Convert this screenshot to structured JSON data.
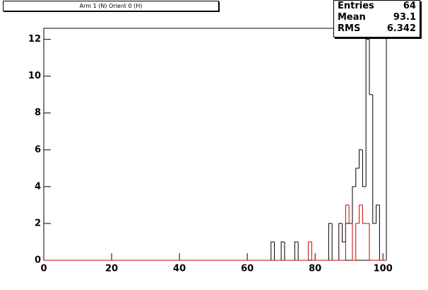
{
  "chart_data": {
    "type": "histogram",
    "title": "Arm 1 (N) Orient 0 (H)",
    "bins": [
      0,
      1,
      2,
      3,
      4,
      5,
      6,
      7,
      8,
      9,
      10,
      11,
      12,
      13,
      14,
      15,
      16,
      17,
      18,
      19,
      20,
      21,
      22,
      23,
      24,
      25,
      26,
      27,
      28,
      29,
      30,
      31,
      32,
      33,
      34,
      35,
      36,
      37,
      38,
      39,
      40,
      41,
      42,
      43,
      44,
      45,
      46,
      47,
      48,
      49,
      50,
      51,
      52,
      53,
      54,
      55,
      56,
      57,
      58,
      59,
      60,
      61,
      62,
      63,
      64,
      65,
      66,
      67,
      68,
      69,
      70,
      71,
      72,
      73,
      74,
      75,
      76,
      77,
      78,
      79,
      80,
      81,
      82,
      83,
      84,
      85,
      86,
      87,
      88,
      89,
      90,
      91,
      92,
      93,
      94,
      95,
      96,
      97,
      98,
      99,
      100,
      101
    ],
    "series": [
      {
        "color": "#000000",
        "values": [
          0,
          0,
          0,
          0,
          0,
          0,
          0,
          0,
          0,
          0,
          0,
          0,
          0,
          0,
          0,
          0,
          0,
          0,
          0,
          0,
          0,
          0,
          0,
          0,
          0,
          0,
          0,
          0,
          0,
          0,
          0,
          0,
          0,
          0,
          0,
          0,
          0,
          0,
          0,
          0,
          0,
          0,
          0,
          0,
          0,
          0,
          0,
          0,
          0,
          0,
          0,
          0,
          0,
          0,
          0,
          0,
          0,
          0,
          0,
          0,
          0,
          0,
          0,
          0,
          0,
          0,
          0,
          1,
          0,
          0,
          1,
          0,
          0,
          0,
          1,
          0,
          0,
          0,
          0,
          0,
          0,
          0,
          0,
          0,
          2,
          0,
          0,
          2,
          1,
          2,
          2,
          4,
          5,
          6,
          4,
          12,
          9,
          2,
          3,
          0,
          0
        ]
      },
      {
        "color": "#cc0000",
        "values": [
          0,
          0,
          0,
          0,
          0,
          0,
          0,
          0,
          0,
          0,
          0,
          0,
          0,
          0,
          0,
          0,
          0,
          0,
          0,
          0,
          0,
          0,
          0,
          0,
          0,
          0,
          0,
          0,
          0,
          0,
          0,
          0,
          0,
          0,
          0,
          0,
          0,
          0,
          0,
          0,
          0,
          0,
          0,
          0,
          0,
          0,
          0,
          0,
          0,
          0,
          0,
          0,
          0,
          0,
          0,
          0,
          0,
          0,
          0,
          0,
          0,
          0,
          0,
          0,
          0,
          0,
          0,
          0,
          0,
          0,
          0,
          0,
          0,
          0,
          0,
          0,
          0,
          0,
          1,
          0,
          0,
          0,
          0,
          0,
          0,
          0,
          0,
          0,
          0,
          3,
          2,
          0,
          2,
          3,
          2,
          2,
          0,
          0,
          0,
          0,
          0
        ]
      }
    ],
    "xlim": [
      0,
      101
    ],
    "ylim": [
      0,
      12.6
    ],
    "xticks": [
      0,
      20,
      40,
      60,
      80,
      100
    ],
    "yticks": [
      0,
      2,
      4,
      6,
      8,
      10,
      12
    ]
  },
  "stats": {
    "rows": [
      [
        "Entries",
        "64"
      ],
      [
        "Mean",
        "93.1"
      ],
      [
        "RMS",
        "6.342"
      ]
    ]
  }
}
